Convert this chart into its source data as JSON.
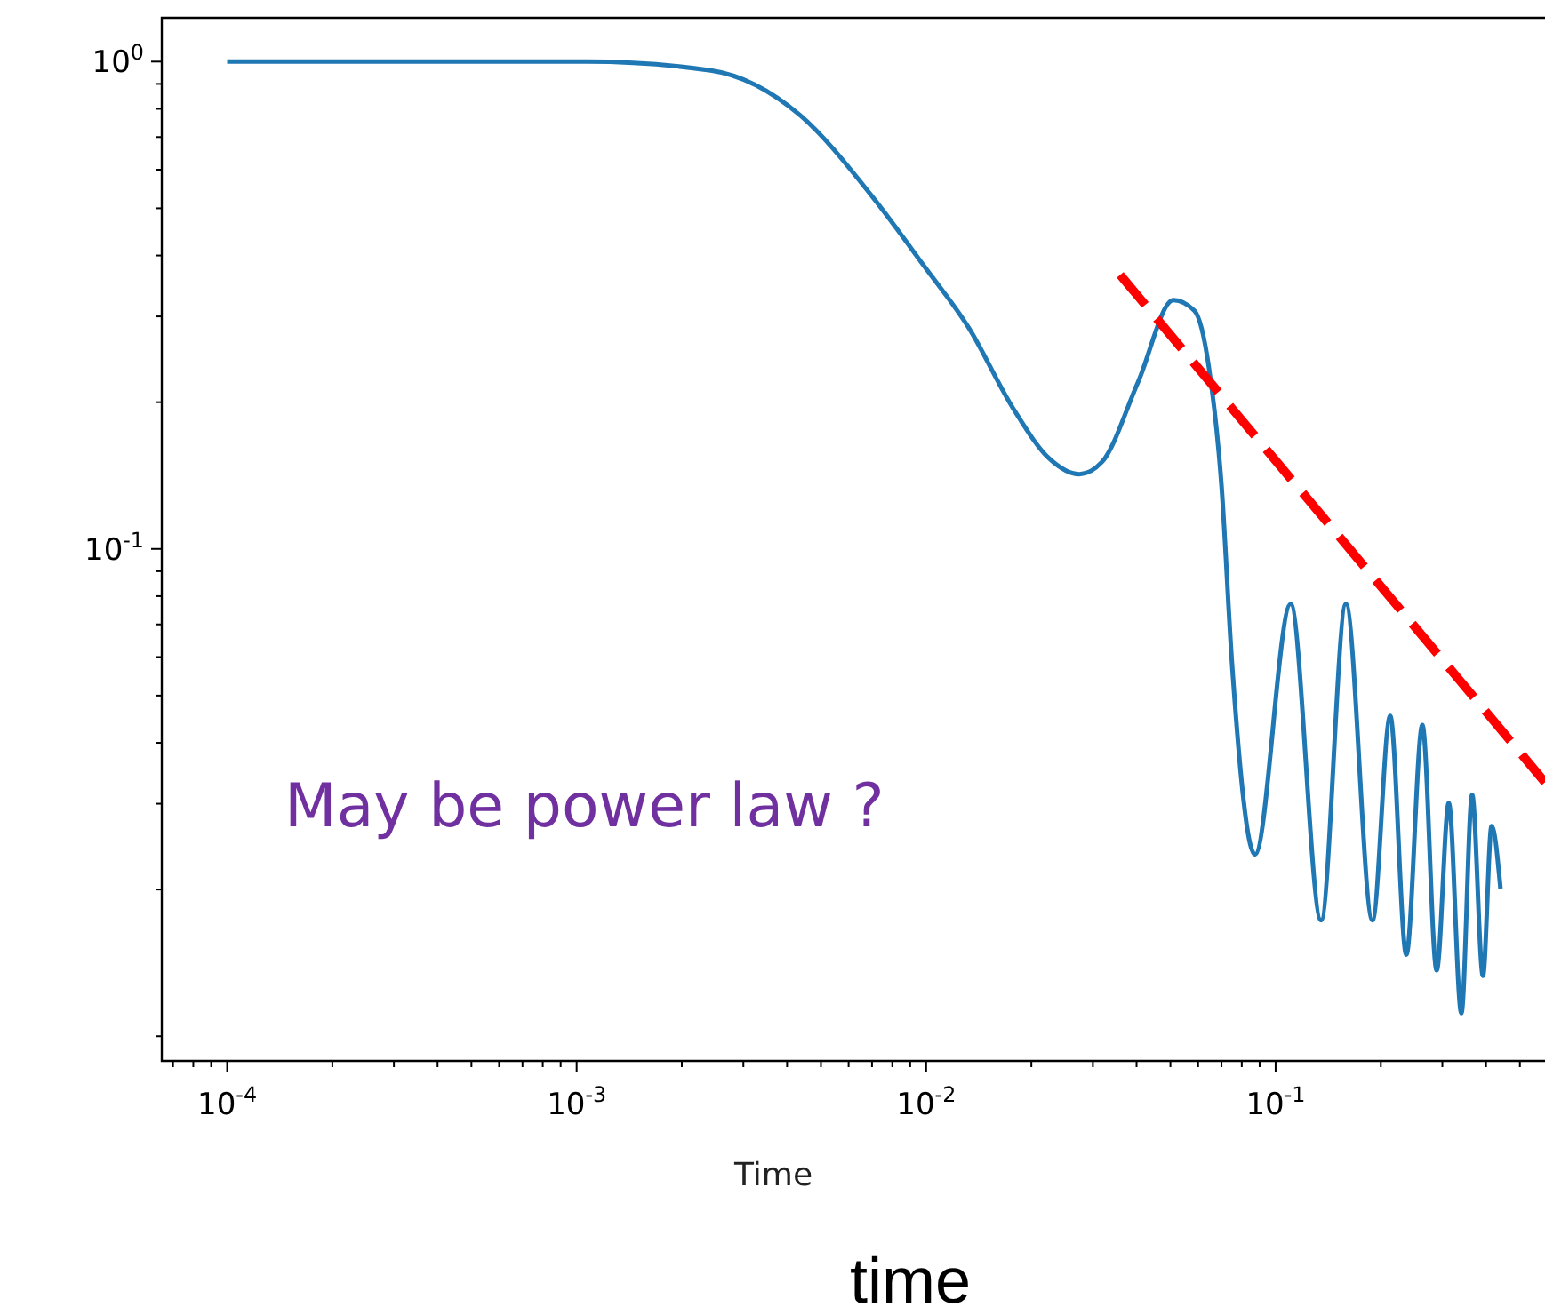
{
  "chart_data": {
    "type": "line",
    "xlabel": "Time",
    "annotations": [
      "May be power law ?",
      "time"
    ],
    "log": "xy",
    "xlim": [
      6.5e-05,
      0.59
    ],
    "ylim": [
      0.0089,
      1.23
    ],
    "xticks": [
      {
        "value": 7e-05,
        "label": null
      },
      {
        "value": 8e-05,
        "label": null
      },
      {
        "value": 9e-05,
        "label": null
      },
      {
        "value": 0.0001,
        "label": "10$^{-4}$"
      },
      {
        "value": 0.0002,
        "label": null
      },
      {
        "value": 0.0003,
        "label": null
      },
      {
        "value": 0.0004,
        "label": null
      },
      {
        "value": 0.0005,
        "label": null
      },
      {
        "value": 0.0006,
        "label": null
      },
      {
        "value": 0.0007,
        "label": null
      },
      {
        "value": 0.0008,
        "label": null
      },
      {
        "value": 0.0009,
        "label": null
      },
      {
        "value": 0.001,
        "label": "10$^{-3}$"
      },
      {
        "value": 0.002,
        "label": null
      },
      {
        "value": 0.003,
        "label": null
      },
      {
        "value": 0.004,
        "label": null
      },
      {
        "value": 0.005,
        "label": null
      },
      {
        "value": 0.006,
        "label": null
      },
      {
        "value": 0.007,
        "label": null
      },
      {
        "value": 0.008,
        "label": null
      },
      {
        "value": 0.009,
        "label": null
      },
      {
        "value": 0.01,
        "label": "10$^{-2}$"
      },
      {
        "value": 0.02,
        "label": null
      },
      {
        "value": 0.03,
        "label": null
      },
      {
        "value": 0.04,
        "label": null
      },
      {
        "value": 0.05,
        "label": null
      },
      {
        "value": 0.06,
        "label": null
      },
      {
        "value": 0.07,
        "label": null
      },
      {
        "value": 0.08,
        "label": null
      },
      {
        "value": 0.09,
        "label": null
      },
      {
        "value": 0.1,
        "label": "10$^{-1}$"
      },
      {
        "value": 0.2,
        "label": null
      },
      {
        "value": 0.3,
        "label": null
      },
      {
        "value": 0.4,
        "label": null
      },
      {
        "value": 0.5,
        "label": null
      }
    ],
    "yticks": [
      {
        "value": 0.01,
        "label": null
      },
      {
        "value": 0.02,
        "label": null
      },
      {
        "value": 0.03,
        "label": null
      },
      {
        "value": 0.04,
        "label": null
      },
      {
        "value": 0.05,
        "label": null
      },
      {
        "value": 0.06,
        "label": null
      },
      {
        "value": 0.07,
        "label": null
      },
      {
        "value": 0.08,
        "label": null
      },
      {
        "value": 0.09,
        "label": null
      },
      {
        "value": 0.1,
        "label": "10$^{-1}$"
      },
      {
        "value": 0.2,
        "label": null
      },
      {
        "value": 0.3,
        "label": null
      },
      {
        "value": 0.4,
        "label": null
      },
      {
        "value": 0.5,
        "label": null
      },
      {
        "value": 0.6,
        "label": null
      },
      {
        "value": 0.7,
        "label": null
      },
      {
        "value": 0.8,
        "label": null
      },
      {
        "value": 0.9,
        "label": null
      },
      {
        "value": 1,
        "label": "10$^{0}$"
      }
    ],
    "series": [
      {
        "color": "#1f77b4",
        "line_style": "solid",
        "x": [
          0.0001,
          0.00107,
          0.00242,
          0.00435,
          0.00696,
          0.00988,
          0.01325,
          0.01775,
          0.02244,
          0.0274,
          0.0319,
          0.0404,
          0.051,
          0.0586,
          0.0644,
          0.07,
          0.075,
          0.0873,
          0.1104,
          0.1349,
          0.1589,
          0.1893,
          0.2128,
          0.2366,
          0.263,
          0.289,
          0.313,
          0.34,
          0.365,
          0.392,
          0.415,
          0.44
        ],
        "values": [
          1,
          1,
          0.959,
          0.777,
          0.532,
          0.38,
          0.284,
          0.194,
          0.1535,
          0.1423,
          0.151,
          0.22,
          0.324,
          0.308,
          0.236,
          0.135,
          0.0584,
          0.0236,
          0.0771,
          0.0173,
          0.0771,
          0.0173,
          0.0454,
          0.0147,
          0.0435,
          0.01365,
          0.0301,
          0.01115,
          0.0313,
          0.0133,
          0.027,
          0.0201
        ]
      },
      {
        "color": "#ff0000",
        "line_style": "dashed",
        "x": [
          0.0359,
          0.59
        ],
        "values": [
          0.365,
          0.0332
        ]
      }
    ]
  }
}
